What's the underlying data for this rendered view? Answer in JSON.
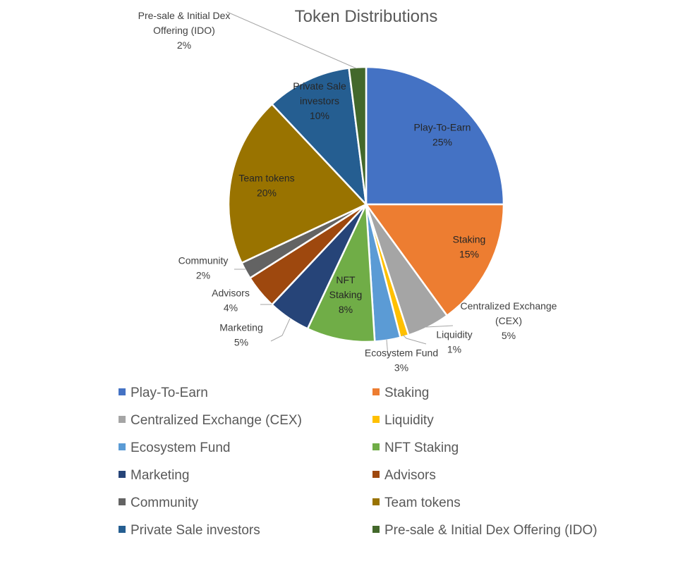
{
  "chart_data": {
    "type": "pie",
    "title": "Token Distributions",
    "unit": "%",
    "slices": [
      {
        "name": "Play-To-Earn",
        "value": 25,
        "color": "#4472C4",
        "label_lines": [
          "Play-To-Earn",
          "25%"
        ]
      },
      {
        "name": "Staking",
        "value": 15,
        "color": "#ED7D31",
        "label_lines": [
          "Staking",
          "15%"
        ]
      },
      {
        "name": "Centralized Exchange (CEX)",
        "value": 5,
        "color": "#A5A5A5",
        "label_lines": [
          "Centralized Exchange",
          "(CEX)",
          "5%"
        ]
      },
      {
        "name": "Liquidity",
        "value": 1,
        "color": "#FFC000",
        "label_lines": [
          "Liquidity",
          "1%"
        ]
      },
      {
        "name": "Ecosystem Fund",
        "value": 3,
        "color": "#5B9BD5",
        "label_lines": [
          "Ecosystem Fund",
          "3%"
        ]
      },
      {
        "name": "NFT Staking",
        "value": 8,
        "color": "#70AD47",
        "label_lines": [
          "NFT",
          "Staking",
          "8%"
        ]
      },
      {
        "name": "Marketing",
        "value": 5,
        "color": "#264478",
        "label_lines": [
          "Marketing",
          "5%"
        ]
      },
      {
        "name": "Advisors",
        "value": 4,
        "color": "#9E480E",
        "label_lines": [
          "Advisors",
          "4%"
        ]
      },
      {
        "name": "Community",
        "value": 2,
        "color": "#636363",
        "label_lines": [
          "Community",
          "2%"
        ]
      },
      {
        "name": "Team tokens",
        "value": 20,
        "color": "#997300",
        "label_lines": [
          "Team tokens",
          "20%"
        ]
      },
      {
        "name": "Private Sale investors",
        "value": 10,
        "color": "#255E91",
        "label_lines": [
          "Private Sale",
          "investors",
          "10%"
        ]
      },
      {
        "name": "Pre-sale & Initial Dex Offering (IDO)",
        "value": 2,
        "color": "#43682B",
        "label_lines": [
          "Pre-sale & Initial Dex",
          "Offering (IDO)",
          "2%"
        ]
      }
    ],
    "legend_position": "bottom"
  }
}
